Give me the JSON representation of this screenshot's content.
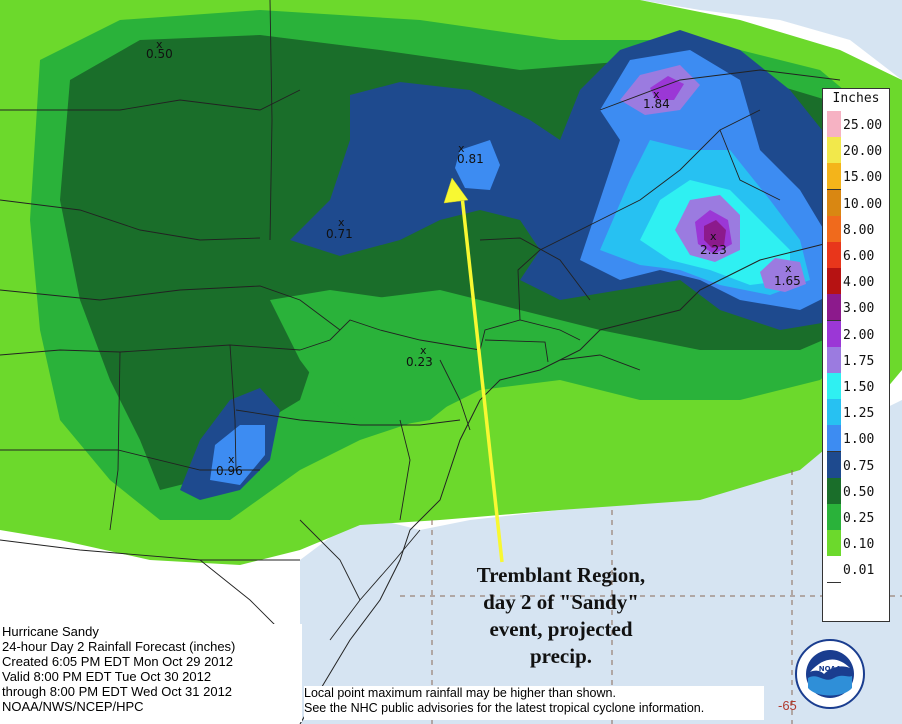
{
  "legend": {
    "title": "Inches",
    "entries": [
      {
        "label": "25.00",
        "color": "#f6b2c3"
      },
      {
        "label": "20.00",
        "color": "#f2e84b"
      },
      {
        "label": "15.00",
        "color": "#f4b41a"
      },
      {
        "label": "10.00",
        "color": "#d98712"
      },
      {
        "label": "8.00",
        "color": "#f06a1c"
      },
      {
        "label": "6.00",
        "color": "#e8361b"
      },
      {
        "label": "4.00",
        "color": "#b61212"
      },
      {
        "label": "3.00",
        "color": "#8c1a8c"
      },
      {
        "label": "2.00",
        "color": "#9b37d6"
      },
      {
        "label": "1.75",
        "color": "#9b7be0"
      },
      {
        "label": "1.50",
        "color": "#2ff0f2"
      },
      {
        "label": "1.25",
        "color": "#27c1f2"
      },
      {
        "label": "1.00",
        "color": "#3d8cf2"
      },
      {
        "label": "0.75",
        "color": "#1e4a8e"
      },
      {
        "label": "0.50",
        "color": "#1a6e2a"
      },
      {
        "label": "0.25",
        "color": "#2ab23a"
      },
      {
        "label": "0.10",
        "color": "#6cd92c"
      },
      {
        "label": "0.01",
        "color": "#ffffff"
      }
    ]
  },
  "info": {
    "line1": "Hurricane Sandy",
    "line2": "24-hour Day 2 Rainfall Forecast (inches)",
    "line3": "Created 6:05 PM EDT Mon Oct 29 2012",
    "line4": "Valid 8:00 PM EDT Tue Oct 30 2012",
    "line5": "through 8:00 PM EDT Wed Oct 31 2012",
    "line6": "NOAA/NWS/NCEP/HPC"
  },
  "disclaimer": {
    "line1": "Local point maximum rainfall may be higher than shown.",
    "line2": "See the NHC public advisories for the latest tropical cyclone information."
  },
  "annotation": {
    "line1": "Tremblant Region,",
    "line2": "day 2 of \"Sandy\"",
    "line3": "event, projected",
    "line4": "precip."
  },
  "points": {
    "p1": "0.50",
    "p2": "1.84",
    "p3": "0.81",
    "p4": "0.71",
    "p5": "2.23",
    "p6": "1.65",
    "p7": "0.23",
    "p8": "0.96",
    "marker": "x"
  },
  "logo": {
    "text": "NOAA"
  },
  "storm_number": "-65",
  "colors": {
    "ocean": "#d6e4f2",
    "land": "#ffffff",
    "arrow": "#f8f832"
  }
}
